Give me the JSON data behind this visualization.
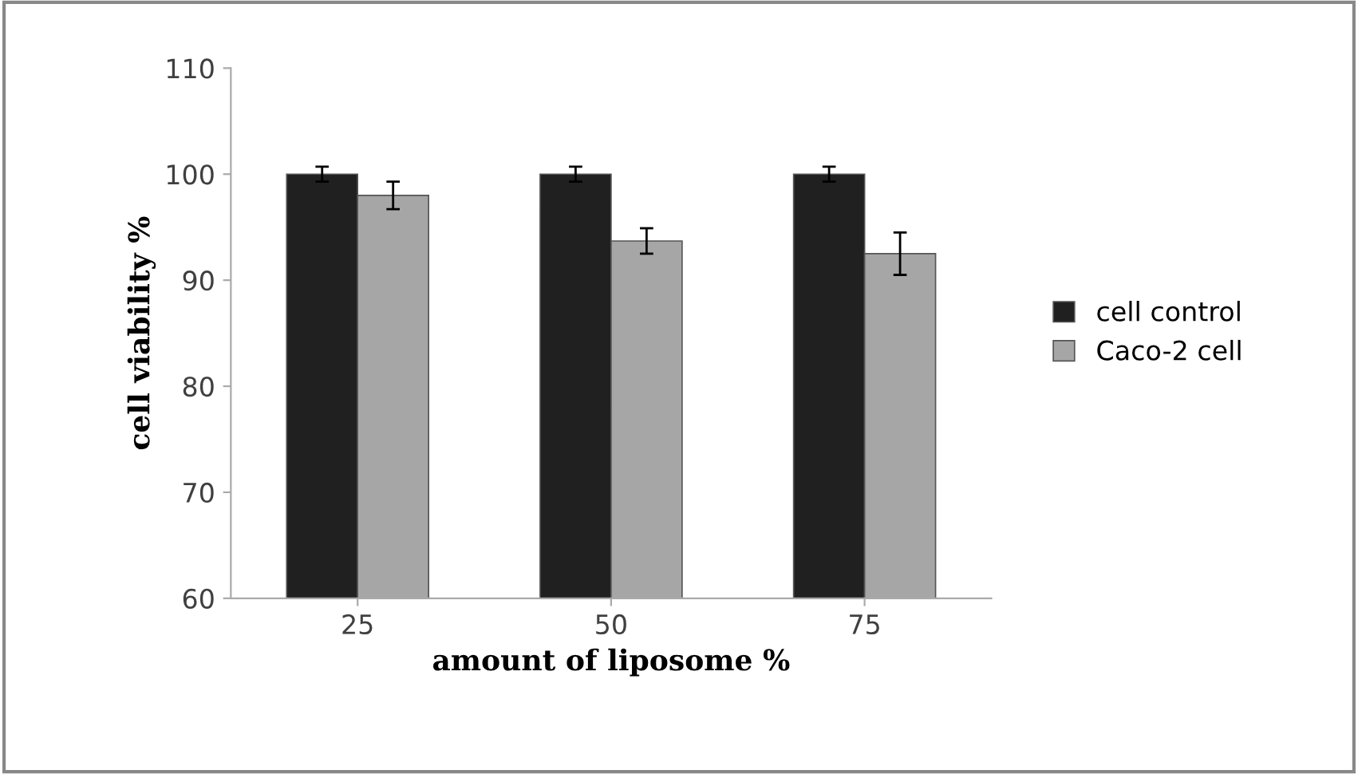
{
  "chart_data": {
    "type": "bar",
    "xlabel": "amount of liposome %",
    "ylabel": "cell viability %",
    "categories": [
      "25",
      "50",
      "75"
    ],
    "series": [
      {
        "name": "cell control",
        "color": "#202020",
        "values": [
          100,
          100,
          100
        ],
        "errors": [
          0.7,
          0.7,
          0.7
        ]
      },
      {
        "name": "Caco-2 cell",
        "color": "#a6a6a6",
        "values": [
          98,
          93.7,
          92.5
        ],
        "errors": [
          1.3,
          1.2,
          2
        ]
      }
    ],
    "ylim": [
      60,
      110
    ],
    "yticks": [
      60,
      70,
      80,
      90,
      100,
      110
    ],
    "grid": false,
    "legend": "right"
  }
}
